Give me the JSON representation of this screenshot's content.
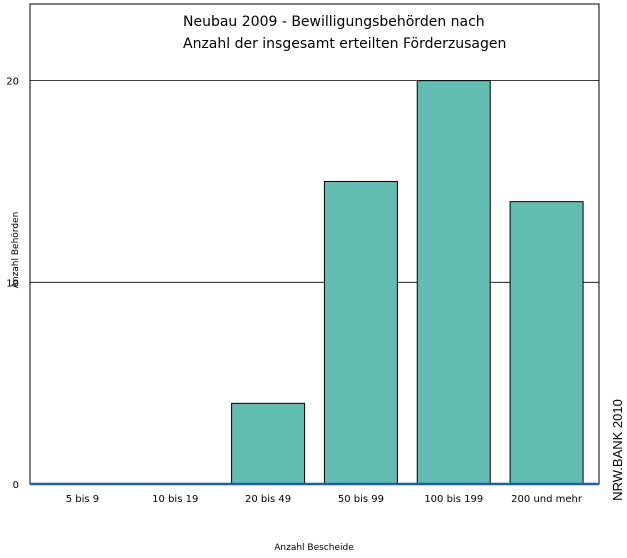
{
  "chart_data": {
    "type": "bar",
    "title_lines": [
      "Neubau 2009 - Bewilligungsbehörden nach",
      "Anzahl der insgesamt erteilten Förderzusagen"
    ],
    "xlabel": "Anzahl Bescheide",
    "ylabel": "Anzahl Behörden",
    "categories": [
      "5 bis  9",
      "10 bis  19",
      "20 bis  49",
      "50 bis  99",
      "100 bis 199",
      "200 und mehr"
    ],
    "values": [
      0,
      0,
      4,
      15,
      20,
      14
    ],
    "yticks": [
      0,
      10,
      20
    ],
    "ylim": [
      0,
      23.8
    ],
    "grid": true,
    "bar_color": "#63bcb0",
    "baseline_color": "#1f5fa0"
  },
  "credit": "NRW.BANK 2010"
}
